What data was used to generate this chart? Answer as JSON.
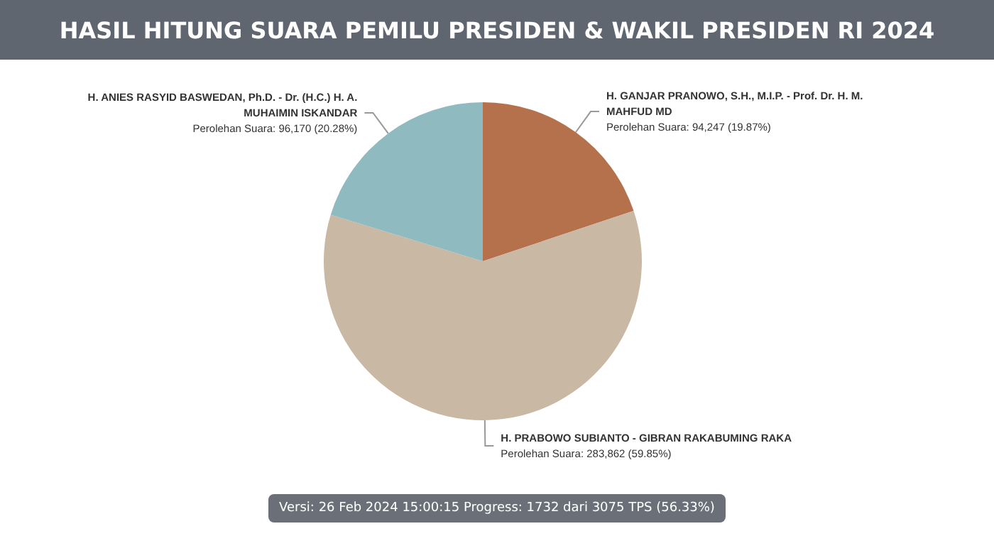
{
  "chart_data": {
    "type": "pie",
    "title": "HASIL HITUNG SUARA PEMILU PRESIDEN & WAKIL PRESIDEN RI 2024",
    "categories": [
      "H. GANJAR PRANOWO, S.H., M.I.P. - Prof. Dr. H. M. MAHFUD MD",
      "H. PRABOWO SUBIANTO - GIBRAN RAKABUMING RAKA",
      "H. ANIES RASYID BASWEDAN, Ph.D. - Dr. (H.C.) H. A. MUHAIMIN ISKANDAR"
    ],
    "values": [
      94247,
      283862,
      96170
    ],
    "colors": [
      "#b5714c",
      "#c9b8a4",
      "#8fbac0"
    ],
    "value_labels": [
      "Perolehan Suara: 94,247 (19.87%)",
      "Perolehan Suara: 283,862 (59.85%)",
      "Perolehan Suara: 96,170 (20.28%)"
    ],
    "legend": false,
    "annotations": [
      "Versi: 26 Feb 2024 15:00:15 Progress: 1732 dari 3075 TPS (56.33%)"
    ]
  }
}
